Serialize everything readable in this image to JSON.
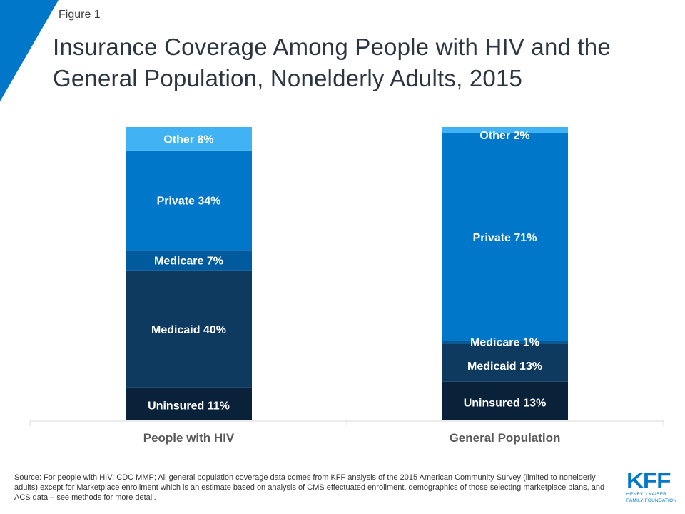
{
  "figure_label": "Figure 1",
  "title": "Insurance Coverage Among People with HIV and the General Population, Nonelderly Adults, 2015",
  "colors": {
    "accent": "#0077c8",
    "Other": "#41b3f5",
    "Private": "#0077c8",
    "Medicare": "#005a9e",
    "Medicaid": "#0f3a5f",
    "Uninsured": "#0a2239",
    "axis": "#d9d9d9"
  },
  "chart_data": {
    "type": "bar",
    "stacked": true,
    "title": "Insurance Coverage Among People with HIV and the General Population, Nonelderly Adults, 2015",
    "xlabel": "",
    "ylabel": "",
    "ylim": [
      0,
      100
    ],
    "grid": false,
    "legend": "none (inline data labels)",
    "categories": [
      "People with HIV",
      "General Population"
    ],
    "series": [
      {
        "name": "Uninsured",
        "values": [
          11,
          13
        ],
        "labels": [
          "Uninsured 11%",
          "Uninsured 13%"
        ]
      },
      {
        "name": "Medicaid",
        "values": [
          40,
          13
        ],
        "labels": [
          "Medicaid 40%",
          "Medicaid 13%"
        ]
      },
      {
        "name": "Medicare",
        "values": [
          7,
          1
        ],
        "labels": [
          "Medicare 7%",
          "Medicare 1%"
        ]
      },
      {
        "name": "Private",
        "values": [
          34,
          71
        ],
        "labels": [
          "Private 34%",
          "Private 71%"
        ]
      },
      {
        "name": "Other",
        "values": [
          8,
          2
        ],
        "labels": [
          "Other 8%",
          "Other 2%"
        ]
      }
    ]
  },
  "source": "Source: For people with HIV:  CDC MMP;  All general population coverage data comes from KFF analysis of the 2015 American Community Survey  (limited to nonelderly adults) except for Marketplace enrollment which is an estimate based on analysis of CMS effectuated enrollment, demographics of those selecting marketplace plans, and ACS data – see methods for more detail.",
  "logo": {
    "main": "KFF",
    "line1": "HENRY J KAISER",
    "line2": "FAMILY FOUNDATION"
  }
}
